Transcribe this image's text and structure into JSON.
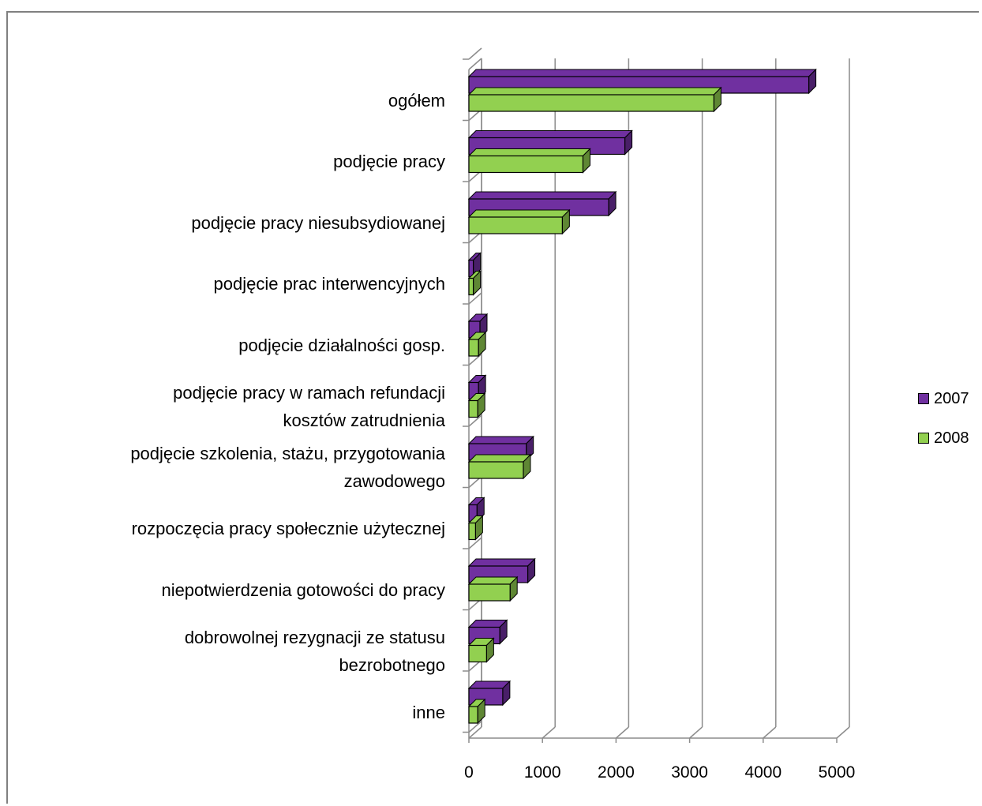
{
  "chart_data": {
    "type": "bar",
    "orientation": "horizontal",
    "categories": [
      "ogółem",
      "podjęcie pracy",
      "podjęcie pracy niesubsydiowanej",
      "podjęcie prac interwencyjnych",
      "podjęcie działalności gosp.",
      "podjęcie pracy w ramach refundacji kosztów zatrudnienia",
      "podjęcie szkolenia,  stażu, przygotowania zawodowego",
      "rozpoczęcia pracy społecznie użytecznej",
      "niepotwierdzenia gotowości do pracy",
      "dobrowolnej rezygnacji ze statusu bezrobotnego",
      "inne"
    ],
    "category_lines": [
      [
        "ogółem"
      ],
      [
        "podjęcie pracy"
      ],
      [
        "podjęcie pracy niesubsydiowanej"
      ],
      [
        "podjęcie prac interwencyjnych"
      ],
      [
        "podjęcie działalności gosp."
      ],
      [
        "podjęcie pracy w ramach refundacji",
        "kosztów zatrudnienia"
      ],
      [
        "podjęcie szkolenia,  stażu, przygotowania",
        "zawodowego"
      ],
      [
        "rozpoczęcia pracy społecznie użytecznej"
      ],
      [
        "niepotwierdzenia gotowości do pracy"
      ],
      [
        "dobrowolnej rezygnacji ze statusu",
        "bezrobotnego"
      ],
      [
        "inne"
      ]
    ],
    "series": [
      {
        "name": "2007",
        "color": "#7030A0",
        "values": [
          4620,
          2120,
          1900,
          60,
          150,
          130,
          780,
          110,
          800,
          420,
          460
        ]
      },
      {
        "name": "2008",
        "color": "#92D050",
        "values": [
          3330,
          1550,
          1270,
          60,
          130,
          120,
          740,
          90,
          560,
          240,
          120
        ]
      }
    ],
    "xlim": [
      0,
      5000
    ],
    "xticks": [
      "0",
      "1000",
      "2000",
      "3000",
      "4000",
      "5000"
    ],
    "grid": true,
    "legend_position": "right"
  }
}
